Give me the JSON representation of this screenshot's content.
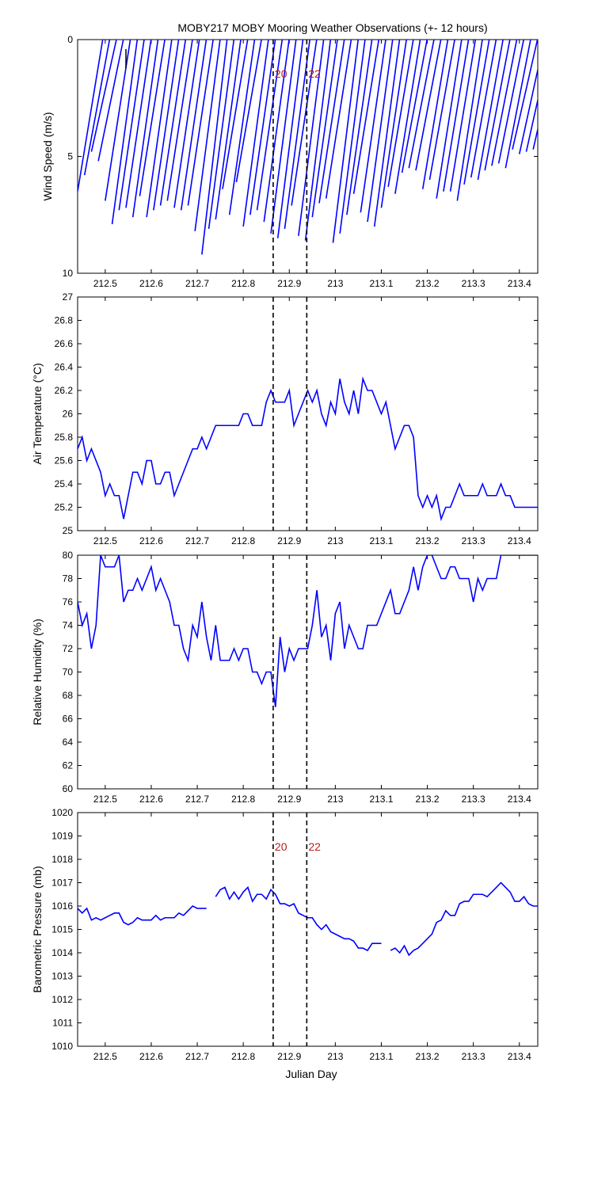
{
  "title": "MOBY217 MOBY Mooring Weather Observations (+- 12 hours)",
  "xlabel": "Julian Day",
  "colors": {
    "series": "#0000ff",
    "marker_text": "#b22222",
    "axes": "#000000"
  },
  "x_ticks": [
    "212.5",
    "212.6",
    "212.7",
    "212.8",
    "212.9",
    "213",
    "213.1",
    "213.2",
    "213.3",
    "213.4"
  ],
  "x_tick_values": [
    212.5,
    212.6,
    212.7,
    212.8,
    212.9,
    213.0,
    213.1,
    213.2,
    213.3,
    213.4
  ],
  "chart_data": [
    {
      "type": "line",
      "subtype": "wind-stick",
      "ylabel": "Wind Speed (m/s)",
      "xlim": [
        212.44,
        213.44
      ],
      "ylim": [
        0,
        10
      ],
      "y_reversed": true,
      "y_ticks": [
        "0",
        "5",
        "10"
      ],
      "y_tick_values": [
        0,
        5,
        10
      ],
      "markers": [
        {
          "x": 212.865,
          "label": "20"
        },
        {
          "x": 212.938,
          "label": "22"
        }
      ],
      "x": [
        212.44,
        212.455,
        212.47,
        212.485,
        212.5,
        212.515,
        212.53,
        212.545,
        212.56,
        212.575,
        212.59,
        212.605,
        212.62,
        212.635,
        212.65,
        212.665,
        212.68,
        212.695,
        212.71,
        212.725,
        212.74,
        212.755,
        212.77,
        212.785,
        212.8,
        212.815,
        212.83,
        212.845,
        212.86,
        212.875,
        212.89,
        212.905,
        212.92,
        212.935,
        212.95,
        212.965,
        212.98,
        212.995,
        213.01,
        213.025,
        213.04,
        213.055,
        213.07,
        213.085,
        213.1,
        213.115,
        213.13,
        213.145,
        213.16,
        213.175,
        213.19,
        213.205,
        213.22,
        213.235,
        213.25,
        213.265,
        213.28,
        213.295,
        213.31,
        213.325,
        213.34,
        213.355,
        213.37,
        213.385,
        213.4,
        213.415,
        213.43
      ],
      "speed": [
        6.5,
        5.8,
        4.8,
        5.2,
        6.9,
        7.9,
        7.3,
        7.2,
        7.6,
        6.7,
        7.6,
        7.3,
        7.1,
        6.9,
        7.2,
        7.3,
        7.1,
        8.2,
        9.2,
        8.1,
        7.7,
        6.4,
        7.5,
        6.1,
        8.0,
        7.5,
        7.3,
        7.8,
        8.3,
        8.5,
        8.1,
        7.1,
        8.4,
        8.6,
        7.6,
        7.0,
        6.8,
        8.7,
        8.3,
        7.5,
        6.6,
        7.4,
        7.8,
        8.0,
        7.2,
        6.3,
        6.6,
        5.7,
        5.5,
        5.6,
        6.4,
        6.0,
        6.8,
        6.5,
        6.5,
        6.9,
        6.2,
        5.9,
        6.0,
        5.6,
        5.4,
        5.3,
        5.5,
        4.7,
        4.9,
        4.8,
        4.7
      ],
      "direction_note": "sticks point toward upper right"
    },
    {
      "type": "line",
      "ylabel": "Air Temperature (°C)",
      "xlim": [
        212.44,
        213.44
      ],
      "ylim": [
        25,
        27
      ],
      "y_ticks": [
        "25",
        "25.2",
        "25.4",
        "25.6",
        "25.8",
        "26",
        "26.2",
        "26.4",
        "26.6",
        "26.8",
        "27"
      ],
      "y_tick_values": [
        25,
        25.2,
        25.4,
        25.6,
        25.8,
        26,
        26.2,
        26.4,
        26.6,
        26.8,
        27
      ],
      "markers": [
        {
          "x": 212.865,
          "label": ""
        },
        {
          "x": 212.938,
          "label": ""
        }
      ],
      "x": [
        212.44,
        212.45,
        212.46,
        212.47,
        212.48,
        212.49,
        212.5,
        212.51,
        212.52,
        212.53,
        212.54,
        212.55,
        212.56,
        212.57,
        212.58,
        212.59,
        212.6,
        212.61,
        212.62,
        212.63,
        212.64,
        212.65,
        212.66,
        212.67,
        212.68,
        212.69,
        212.7,
        212.71,
        212.72,
        212.73,
        212.74,
        212.75,
        212.76,
        212.77,
        212.78,
        212.79,
        212.8,
        212.81,
        212.82,
        212.83,
        212.84,
        212.85,
        212.86,
        212.87,
        212.88,
        212.89,
        212.9,
        212.91,
        212.92,
        212.93,
        212.94,
        212.95,
        212.96,
        212.97,
        212.98,
        212.99,
        213.0,
        213.01,
        213.02,
        213.03,
        213.04,
        213.05,
        213.06,
        213.07,
        213.08,
        213.09,
        213.1,
        213.11,
        213.12,
        213.13,
        213.14,
        213.15,
        213.16,
        213.17,
        213.18,
        213.19,
        213.2,
        213.21,
        213.22,
        213.23,
        213.24,
        213.25,
        213.26,
        213.27,
        213.28,
        213.29,
        213.3,
        213.31,
        213.32,
        213.33,
        213.34,
        213.35,
        213.36,
        213.37,
        213.38,
        213.39,
        213.4,
        213.41,
        213.42,
        213.43,
        213.44
      ],
      "y": [
        25.7,
        25.8,
        25.6,
        25.7,
        25.6,
        25.5,
        25.3,
        25.4,
        25.3,
        25.3,
        25.1,
        25.3,
        25.5,
        25.5,
        25.4,
        25.6,
        25.6,
        25.4,
        25.4,
        25.5,
        25.5,
        25.3,
        25.4,
        25.5,
        25.6,
        25.7,
        25.7,
        25.8,
        25.7,
        25.8,
        25.9,
        25.9,
        25.9,
        25.9,
        25.9,
        25.9,
        26.0,
        26.0,
        25.9,
        25.9,
        25.9,
        26.1,
        26.2,
        26.1,
        26.1,
        26.1,
        26.2,
        25.9,
        26.0,
        26.1,
        26.2,
        26.1,
        26.2,
        26.0,
        25.9,
        26.1,
        26.0,
        26.3,
        26.1,
        26.0,
        26.2,
        26.0,
        26.3,
        26.2,
        26.2,
        26.1,
        26.0,
        26.1,
        25.9,
        25.7,
        25.8,
        25.9,
        25.9,
        25.8,
        25.3,
        25.2,
        25.3,
        25.2,
        25.3,
        25.1,
        25.2,
        25.2,
        25.3,
        25.4,
        25.3,
        25.3,
        25.3,
        25.3,
        25.4,
        25.3,
        25.3,
        25.3,
        25.4,
        25.3,
        25.3,
        25.2,
        25.2,
        25.2,
        25.2,
        25.2,
        25.2
      ]
    },
    {
      "type": "line",
      "ylabel": "Relative Humidity (%)",
      "xlim": [
        212.44,
        213.44
      ],
      "ylim": [
        60,
        80
      ],
      "y_ticks": [
        "60",
        "62",
        "64",
        "66",
        "68",
        "70",
        "72",
        "74",
        "76",
        "78",
        "80"
      ],
      "y_tick_values": [
        60,
        62,
        64,
        66,
        68,
        70,
        72,
        74,
        76,
        78,
        80
      ],
      "markers": [
        {
          "x": 212.865,
          "label": ""
        },
        {
          "x": 212.938,
          "label": ""
        }
      ],
      "x": [
        212.44,
        212.45,
        212.46,
        212.47,
        212.48,
        212.49,
        212.5,
        212.51,
        212.52,
        212.53,
        212.54,
        212.55,
        212.56,
        212.57,
        212.58,
        212.59,
        212.6,
        212.61,
        212.62,
        212.63,
        212.64,
        212.65,
        212.66,
        212.67,
        212.68,
        212.69,
        212.7,
        212.71,
        212.72,
        212.73,
        212.74,
        212.75,
        212.76,
        212.77,
        212.78,
        212.79,
        212.8,
        212.81,
        212.82,
        212.83,
        212.84,
        212.85,
        212.86,
        212.87,
        212.88,
        212.89,
        212.9,
        212.91,
        212.92,
        212.93,
        212.94,
        212.95,
        212.96,
        212.97,
        212.98,
        212.99,
        213.0,
        213.01,
        213.02,
        213.03,
        213.04,
        213.05,
        213.06,
        213.07,
        213.08,
        213.09,
        213.1,
        213.11,
        213.12,
        213.13,
        213.14,
        213.15,
        213.16,
        213.17,
        213.18,
        213.19,
        213.2,
        213.21,
        213.22,
        213.23,
        213.24,
        213.25,
        213.26,
        213.27,
        213.28,
        213.29,
        213.3,
        213.31,
        213.32,
        213.33,
        213.34,
        213.35,
        213.36,
        213.37,
        213.38,
        213.39,
        213.4,
        213.41,
        213.42,
        213.43,
        213.44
      ],
      "y": [
        76,
        74,
        75,
        72,
        74,
        80,
        79,
        79,
        79,
        80,
        76,
        77,
        77,
        78,
        77,
        78,
        79,
        77,
        78,
        77,
        76,
        74,
        74,
        72,
        71,
        74,
        73,
        76,
        73,
        71,
        74,
        71,
        71,
        71,
        72,
        71,
        72,
        72,
        70,
        70,
        69,
        70,
        70,
        67,
        73,
        70,
        72,
        71,
        72,
        72,
        72,
        74,
        77,
        73,
        74,
        71,
        75,
        76,
        72,
        74,
        73,
        72,
        72,
        74,
        74,
        74,
        75,
        76,
        77,
        75,
        75,
        76,
        77,
        79,
        77,
        79,
        80,
        80,
        79,
        78,
        78,
        79,
        79,
        78,
        78,
        78,
        76,
        78,
        77,
        78,
        78,
        78,
        80,
        80,
        80,
        80,
        80,
        80,
        80,
        80,
        80
      ]
    },
    {
      "type": "line",
      "ylabel": "Barometric Pressure (mb)",
      "xlim": [
        212.44,
        213.44
      ],
      "ylim": [
        1010,
        1020
      ],
      "y_ticks": [
        "1010",
        "1011",
        "1012",
        "1013",
        "1014",
        "1015",
        "1016",
        "1017",
        "1018",
        "1019",
        "1020"
      ],
      "y_tick_values": [
        1010,
        1011,
        1012,
        1013,
        1014,
        1015,
        1016,
        1017,
        1018,
        1019,
        1020
      ],
      "markers": [
        {
          "x": 212.865,
          "label": "20"
        },
        {
          "x": 212.938,
          "label": "22"
        }
      ],
      "segments": [
        {
          "x": [
            212.44,
            212.45,
            212.46,
            212.47,
            212.48,
            212.49,
            212.5,
            212.51,
            212.52,
            212.53,
            212.54,
            212.55,
            212.56,
            212.57,
            212.58,
            212.59,
            212.6,
            212.61,
            212.62,
            212.63,
            212.64,
            212.65,
            212.66,
            212.67,
            212.68,
            212.69,
            212.7,
            212.71,
            212.72
          ],
          "y": [
            1015.9,
            1015.7,
            1015.9,
            1015.4,
            1015.5,
            1015.4,
            1015.5,
            1015.6,
            1015.7,
            1015.7,
            1015.3,
            1015.2,
            1015.3,
            1015.5,
            1015.4,
            1015.4,
            1015.4,
            1015.6,
            1015.4,
            1015.5,
            1015.5,
            1015.5,
            1015.7,
            1015.6,
            1015.8,
            1016.0,
            1015.9,
            1015.9,
            1015.9
          ]
        },
        {
          "x": [
            212.74,
            212.75,
            212.76,
            212.77,
            212.78,
            212.79,
            212.8,
            212.81,
            212.82,
            212.83,
            212.84,
            212.85,
            212.86,
            212.87,
            212.88,
            212.89,
            212.9,
            212.91,
            212.92,
            212.93,
            212.94,
            212.95,
            212.96,
            212.97,
            212.98,
            212.99,
            213.0,
            213.01,
            213.02,
            213.03,
            213.04,
            213.05,
            213.06,
            213.07,
            213.08,
            213.09,
            213.1
          ],
          "y": [
            1016.4,
            1016.7,
            1016.8,
            1016.3,
            1016.6,
            1016.3,
            1016.6,
            1016.8,
            1016.2,
            1016.5,
            1016.5,
            1016.3,
            1016.7,
            1016.5,
            1016.1,
            1016.1,
            1016.0,
            1016.1,
            1015.7,
            1015.6,
            1015.5,
            1015.5,
            1015.2,
            1015.0,
            1015.2,
            1014.9,
            1014.8,
            1014.7,
            1014.6,
            1014.6,
            1014.5,
            1014.2,
            1014.2,
            1014.1,
            1014.4,
            1014.4,
            1014.4
          ]
        },
        {
          "x": [
            213.12,
            213.13,
            213.14,
            213.15,
            213.16,
            213.17,
            213.18,
            213.19,
            213.2,
            213.21,
            213.22,
            213.23,
            213.24,
            213.25,
            213.26,
            213.27,
            213.28,
            213.29,
            213.3,
            213.31,
            213.32,
            213.33,
            213.34,
            213.35,
            213.36,
            213.37,
            213.38,
            213.39,
            213.4,
            213.41,
            213.42,
            213.43,
            213.44
          ],
          "y": [
            1014.1,
            1014.2,
            1014.0,
            1014.3,
            1013.9,
            1014.1,
            1014.2,
            1014.4,
            1014.6,
            1014.8,
            1015.3,
            1015.4,
            1015.8,
            1015.6,
            1015.6,
            1016.1,
            1016.2,
            1016.2,
            1016.5,
            1016.5,
            1016.5,
            1016.4,
            1016.6,
            1016.8,
            1017.0,
            1016.8,
            1016.6,
            1016.2,
            1016.2,
            1016.4,
            1016.1,
            1016.0,
            1016.0
          ]
        }
      ]
    }
  ]
}
